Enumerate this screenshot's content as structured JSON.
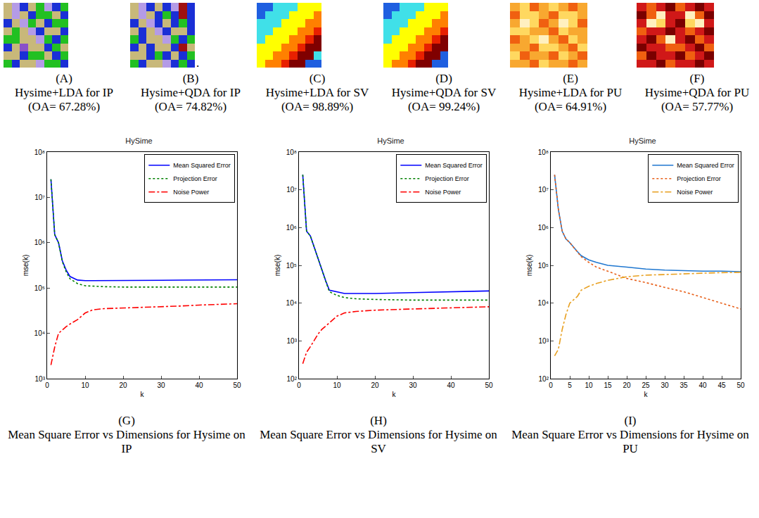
{
  "chart_data": [
    {
      "type": "heatmap",
      "panel": "(A)",
      "caption": "Hysime+LDA for IP (OA= 67.28%)",
      "tick_labels": false,
      "colors": [
        "#1a2fd6",
        "#5a8cf0",
        "#22c022",
        "#90e050",
        "#c8b87a",
        "#b49be6",
        "#8a50c8",
        "#a01010"
      ],
      "cells": [
        [
          4,
          5,
          0,
          4,
          2,
          5,
          0,
          2
        ],
        [
          4,
          5,
          4,
          0,
          2,
          2,
          4,
          0
        ],
        [
          0,
          4,
          5,
          2,
          4,
          0,
          2,
          2
        ],
        [
          4,
          2,
          4,
          5,
          0,
          4,
          4,
          0
        ],
        [
          2,
          2,
          4,
          4,
          5,
          2,
          0,
          2
        ],
        [
          0,
          4,
          6,
          4,
          4,
          0,
          2,
          4
        ],
        [
          4,
          4,
          0,
          2,
          2,
          4,
          0,
          2
        ],
        [
          2,
          0,
          4,
          4,
          5,
          2,
          2,
          0
        ]
      ]
    },
    {
      "type": "heatmap",
      "panel": "(B)",
      "caption": "Hysime+QDA for IP (OA= 74.82%)",
      "annotation": ".",
      "tick_labels": false,
      "colors": [
        "#1a2fd6",
        "#5a8cf0",
        "#22c022",
        "#90e050",
        "#c8b87a",
        "#b49be6",
        "#8a50c8",
        "#a01010"
      ],
      "cells": [
        [
          4,
          5,
          0,
          4,
          0,
          5,
          7,
          0
        ],
        [
          4,
          5,
          4,
          0,
          2,
          0,
          7,
          0
        ],
        [
          0,
          4,
          5,
          0,
          4,
          0,
          2,
          0
        ],
        [
          4,
          0,
          4,
          5,
          0,
          4,
          4,
          0
        ],
        [
          2,
          0,
          4,
          4,
          5,
          2,
          0,
          2
        ],
        [
          0,
          4,
          0,
          4,
          4,
          0,
          7,
          4
        ],
        [
          4,
          4,
          0,
          2,
          0,
          4,
          0,
          2
        ],
        [
          2,
          0,
          4,
          4,
          5,
          0,
          2,
          0
        ]
      ]
    },
    {
      "type": "heatmap",
      "panel": "(C)",
      "caption": "Hysime+LDA for SV (OA= 98.89%)",
      "tick_labels": false,
      "colors": [
        "#1f5fe0",
        "#40e0e8",
        "#ffff00",
        "#ff8000",
        "#e82000",
        "#800000"
      ],
      "cells": [
        [
          0,
          0,
          1,
          1,
          1,
          2,
          2,
          2
        ],
        [
          0,
          1,
          1,
          1,
          2,
          2,
          2,
          3
        ],
        [
          1,
          1,
          1,
          2,
          2,
          2,
          3,
          3
        ],
        [
          1,
          1,
          2,
          2,
          2,
          3,
          3,
          4
        ],
        [
          1,
          2,
          2,
          2,
          3,
          3,
          4,
          5
        ],
        [
          2,
          2,
          2,
          3,
          3,
          4,
          5,
          5
        ],
        [
          2,
          2,
          3,
          3,
          4,
          5,
          5,
          1
        ],
        [
          2,
          3,
          3,
          4,
          5,
          5,
          0,
          0
        ]
      ]
    },
    {
      "type": "heatmap",
      "panel": "(D)",
      "caption": "Hysime+QDA for SV (OA= 99.24%)",
      "tick_labels": false,
      "colors": [
        "#1f5fe0",
        "#40e0e8",
        "#ffff00",
        "#ff8000",
        "#e82000",
        "#800000"
      ],
      "cells": [
        [
          0,
          0,
          1,
          1,
          1,
          2,
          2,
          2
        ],
        [
          0,
          1,
          1,
          1,
          2,
          2,
          2,
          3
        ],
        [
          1,
          1,
          1,
          2,
          2,
          2,
          3,
          3
        ],
        [
          1,
          1,
          2,
          2,
          2,
          3,
          3,
          4
        ],
        [
          1,
          2,
          2,
          2,
          3,
          3,
          4,
          5
        ],
        [
          2,
          2,
          2,
          3,
          3,
          4,
          5,
          5
        ],
        [
          2,
          2,
          3,
          3,
          4,
          5,
          5,
          0
        ],
        [
          2,
          3,
          3,
          4,
          5,
          5,
          0,
          0
        ]
      ]
    },
    {
      "type": "heatmap",
      "panel": "(E)",
      "caption": "Hysime+LDA for PU (OA= 64.91%)",
      "tick_labels": false,
      "colors": [
        "#7a0000",
        "#d01818",
        "#f06010",
        "#f8a830",
        "#ffd860",
        "#fff0c0"
      ],
      "cells": [
        [
          3,
          4,
          2,
          3,
          4,
          3,
          2,
          3
        ],
        [
          2,
          4,
          4,
          3,
          2,
          4,
          4,
          3
        ],
        [
          3,
          5,
          4,
          2,
          3,
          5,
          4,
          2
        ],
        [
          4,
          4,
          3,
          3,
          2,
          4,
          3,
          3
        ],
        [
          2,
          3,
          4,
          5,
          3,
          2,
          4,
          3
        ],
        [
          3,
          3,
          2,
          4,
          4,
          3,
          2,
          4
        ],
        [
          4,
          2,
          3,
          3,
          2,
          4,
          3,
          2
        ],
        [
          3,
          3,
          2,
          4,
          3,
          3,
          2,
          3
        ]
      ]
    },
    {
      "type": "heatmap",
      "panel": "(F)",
      "caption": "Hysime+QDA for PU (OA= 57.77%)",
      "tick_labels": false,
      "colors": [
        "#7a0000",
        "#d01818",
        "#f06010",
        "#f8a830",
        "#ffd860",
        "#fff0c0"
      ],
      "cells": [
        [
          1,
          2,
          1,
          0,
          2,
          1,
          0,
          1
        ],
        [
          0,
          2,
          5,
          1,
          1,
          5,
          2,
          0
        ],
        [
          1,
          5,
          4,
          1,
          0,
          4,
          5,
          1
        ],
        [
          2,
          1,
          1,
          0,
          1,
          2,
          1,
          0
        ],
        [
          1,
          0,
          2,
          5,
          1,
          0,
          2,
          1
        ],
        [
          0,
          1,
          1,
          2,
          2,
          1,
          0,
          2
        ],
        [
          2,
          0,
          1,
          1,
          0,
          2,
          1,
          0
        ],
        [
          1,
          1,
          0,
          2,
          1,
          1,
          0,
          1
        ]
      ]
    },
    {
      "type": "line",
      "panel": "(G)",
      "caption": "Mean Square Error vs Dimensions for Hysime on IP",
      "title": "HySime",
      "x_label": "k",
      "y_label": "mse(k)",
      "log": "y",
      "grid": false,
      "legend": "upper right",
      "xlim": [
        0,
        50
      ],
      "xticks": [
        0,
        10,
        20,
        30,
        40,
        50
      ],
      "ylim": [
        1000,
        100000000
      ],
      "yticks": [
        {
          "value": 1000,
          "label": "10³"
        },
        {
          "value": 10000,
          "label": "10⁴"
        },
        {
          "value": 100000,
          "label": "10⁵"
        },
        {
          "value": 1000000,
          "label": "10⁶"
        },
        {
          "value": 10000000,
          "label": "10⁷"
        },
        {
          "value": 100000000,
          "label": "10⁸"
        }
      ],
      "x": [
        1,
        2,
        3,
        4,
        5,
        6,
        8,
        10,
        12,
        15,
        20,
        25,
        30,
        35,
        40,
        45,
        50
      ],
      "series": [
        {
          "name": "Mean Squared Error",
          "color": "#0000ff",
          "line_style": "solid",
          "values": [
            25000000,
            1500000,
            1000000,
            400000,
            250000,
            180000,
            150000,
            145000,
            145000,
            145000,
            146000,
            147000,
            148000,
            149000,
            150000,
            151000,
            152000
          ]
        },
        {
          "name": "Projection Error",
          "color": "#008000",
          "line_style": "dot",
          "values": [
            25000000,
            1500000,
            1000000,
            380000,
            230000,
            160000,
            125000,
            112000,
            110000,
            107000,
            105000,
            105000,
            105000,
            105000,
            105000,
            105000,
            105000
          ]
        },
        {
          "name": "Noise Power",
          "color": "#ff0000",
          "line_style": "dashdot",
          "values": [
            2000,
            5000,
            10000,
            12000,
            14000,
            16000,
            20000,
            28000,
            33000,
            35000,
            36000,
            37000,
            38000,
            40000,
            42000,
            43000,
            45000
          ]
        }
      ]
    },
    {
      "type": "line",
      "panel": "(H)",
      "caption": "Mean Square Error vs Dimensions for Hysime on SV",
      "title": "HySime",
      "x_label": "k",
      "y_label": "mse(k)",
      "log": "y",
      "grid": false,
      "legend": "upper right",
      "xlim": [
        0,
        50
      ],
      "xticks": [
        0,
        10,
        20,
        30,
        40,
        50
      ],
      "ylim": [
        100,
        100000000
      ],
      "yticks": [
        {
          "value": 100,
          "label": "10²"
        },
        {
          "value": 1000,
          "label": "10³"
        },
        {
          "value": 10000,
          "label": "10⁴"
        },
        {
          "value": 100000,
          "label": "10⁵"
        },
        {
          "value": 1000000,
          "label": "10⁶"
        },
        {
          "value": 10000000,
          "label": "10⁷"
        },
        {
          "value": 100000000,
          "label": "10⁸"
        }
      ],
      "x": [
        1,
        2,
        3,
        4,
        5,
        6,
        7,
        8,
        10,
        12,
        15,
        20,
        30,
        40,
        50
      ],
      "series": [
        {
          "name": "Mean Squared Error",
          "color": "#0000ff",
          "line_style": "solid",
          "values": [
            25000000,
            800000,
            600000,
            300000,
            150000,
            80000,
            40000,
            22000,
            20000,
            18000,
            18000,
            18000,
            19000,
            20000,
            21000
          ]
        },
        {
          "name": "Projection Error",
          "color": "#008000",
          "line_style": "dot",
          "values": [
            25000000,
            800000,
            600000,
            300000,
            150000,
            80000,
            40000,
            20000,
            16000,
            14000,
            13000,
            12500,
            12000,
            12000,
            12000
          ]
        },
        {
          "name": "Noise Power",
          "color": "#ff0000",
          "line_style": "dashdot",
          "values": [
            250,
            500,
            700,
            1000,
            1500,
            2000,
            2500,
            3000,
            4500,
            5500,
            6000,
            6500,
            7000,
            7500,
            8000
          ]
        }
      ]
    },
    {
      "type": "line",
      "panel": "(I)",
      "caption": "Mean Square Error vs Dimensions for Hysime on PU",
      "title": "HySime",
      "x_label": "k",
      "y_label": "mse(k)",
      "log": "y",
      "grid": false,
      "legend": "upper right",
      "xlim": [
        0,
        50
      ],
      "xticks": [
        0,
        5,
        10,
        15,
        20,
        25,
        30,
        35,
        40,
        45,
        50
      ],
      "ylim": [
        100,
        100000000
      ],
      "yticks": [
        {
          "value": 100,
          "label": "10²"
        },
        {
          "value": 1000,
          "label": "10³"
        },
        {
          "value": 10000,
          "label": "10⁴"
        },
        {
          "value": 100000,
          "label": "10⁵"
        },
        {
          "value": 1000000,
          "label": "10⁶"
        },
        {
          "value": 10000000,
          "label": "10⁷"
        },
        {
          "value": 100000000,
          "label": "10⁸"
        }
      ],
      "x": [
        1,
        2,
        3,
        4,
        5,
        6,
        7,
        8,
        10,
        12,
        15,
        20,
        25,
        30,
        35,
        40,
        45,
        50
      ],
      "series": [
        {
          "name": "Mean Squared Error",
          "color": "#1f77d0",
          "line_style": "solid",
          "values": [
            25000000,
            3000000,
            800000,
            500000,
            400000,
            300000,
            230000,
            180000,
            140000,
            120000,
            100000,
            90000,
            80000,
            75000,
            72000,
            70000,
            70000,
            68000
          ]
        },
        {
          "name": "Projection Error",
          "color": "#e8601a",
          "line_style": "dot",
          "values": [
            25000000,
            3000000,
            800000,
            500000,
            400000,
            300000,
            230000,
            170000,
            120000,
            90000,
            70000,
            45000,
            35000,
            26000,
            20000,
            14000,
            10000,
            7000
          ]
        },
        {
          "name": "Noise Power",
          "color": "#e8a020",
          "line_style": "dashdot",
          "values": [
            400,
            600,
            2000,
            5000,
            10000,
            12000,
            15000,
            22000,
            28000,
            33000,
            40000,
            50000,
            55000,
            57000,
            60000,
            62000,
            64000,
            65000
          ]
        }
      ]
    }
  ]
}
